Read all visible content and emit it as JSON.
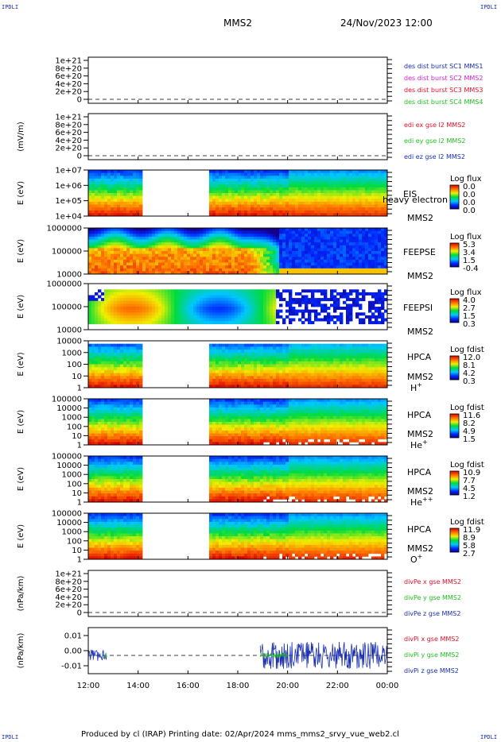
{
  "corner_label": "IPDLI",
  "header": {
    "spacecraft": "MMS2",
    "datetime": "24/Nov/2023 12:00"
  },
  "footer": "Produced by cl (IRAP)   Printing date: 02/Apr/2024   mms_mms2_srvy_vue_web2.cl",
  "chart_data": {
    "type": "heatmap",
    "x_axis": {
      "ticks": [
        "12:00",
        "14:00",
        "16:00",
        "18:00",
        "20:00",
        "22:00",
        "00:00"
      ],
      "range_hours": [
        12,
        24
      ]
    },
    "panels": [
      {
        "type": "line",
        "ylabel": "",
        "yticks": [
          "1e+21",
          "8e+20",
          "6e+20",
          "4e+20",
          "2e+20",
          "0"
        ],
        "legend": [
          {
            "text": "des dist burst SC1 MMS1",
            "color": "#1a2fb0"
          },
          {
            "text": "des dist burst SC2 MMS2",
            "color": "#d020d0"
          },
          {
            "text": "des dist burst SC3 MMS3",
            "color": "#e0102a"
          },
          {
            "text": "des dist burst SC4 MMS4",
            "color": "#20c020"
          }
        ]
      },
      {
        "type": "line",
        "ylabel": "(mV/m)",
        "yticks": [
          "1e+21",
          "8e+20",
          "6e+20",
          "4e+20",
          "2e+20",
          "0"
        ],
        "legend": [
          {
            "text": "edi ex gse l2 MMS2",
            "color": "#e0102a"
          },
          {
            "text": "edi ey gse l2 MMS2",
            "color": "#20c020"
          },
          {
            "text": "edi ez gse l2 MMS2",
            "color": "#1a2fb0"
          }
        ]
      },
      {
        "type": "spectrogram",
        "ylabel": "E (eV)",
        "yticks": [
          "1e+07",
          "1e+06",
          "1e+05",
          "1e+04"
        ],
        "instrument": "EIS",
        "sc": "MMS2",
        "overlay": "heavy electron to",
        "cbar_title": "Log flux",
        "cbar_ticks": [
          "0.0",
          "0.0",
          "0.0",
          "0.0"
        ]
      },
      {
        "type": "spectrogram",
        "ylabel": "E (eV)",
        "yticks": [
          "1000000",
          "100000",
          "10000"
        ],
        "instrument": "FEEPSE",
        "sc": "MMS2",
        "cbar_title": "Log flux",
        "cbar_ticks": [
          "5.3",
          "3.4",
          "1.5",
          "-0.4"
        ]
      },
      {
        "type": "spectrogram",
        "ylabel": "E (eV)",
        "yticks": [
          "1000000",
          "100000",
          "10000"
        ],
        "instrument": "FEEPSI",
        "sc": "MMS2",
        "cbar_title": "Log flux",
        "cbar_ticks": [
          "4.0",
          "2.7",
          "1.5",
          "0.3"
        ]
      },
      {
        "type": "spectrogram",
        "ylabel": "E (eV)",
        "yticks": [
          "10000",
          "1000",
          "100",
          "10",
          "1"
        ],
        "instrument": "HPCA",
        "sc": "MMS2",
        "species": "H",
        "charge": "+",
        "cbar_title": "Log fdist",
        "cbar_ticks": [
          "12.0",
          "8.1",
          "4.2",
          "0.3"
        ]
      },
      {
        "type": "spectrogram",
        "ylabel": "E (eV)",
        "yticks": [
          "100000",
          "10000",
          "1000",
          "100",
          "10",
          "1"
        ],
        "instrument": "HPCA",
        "sc": "MMS2",
        "species": "He",
        "charge": "+",
        "cbar_title": "Log fdist",
        "cbar_ticks": [
          "11.6",
          "8.2",
          "4.9",
          "1.5"
        ]
      },
      {
        "type": "spectrogram",
        "ylabel": "E (eV)",
        "yticks": [
          "100000",
          "10000",
          "1000",
          "100",
          "10",
          "1"
        ],
        "instrument": "HPCA",
        "sc": "MMS2",
        "species": "He",
        "charge": "++",
        "cbar_title": "Log fdist",
        "cbar_ticks": [
          "10.9",
          "7.7",
          "4.5",
          "1.2"
        ]
      },
      {
        "type": "spectrogram",
        "ylabel": "E (eV)",
        "yticks": [
          "100000",
          "10000",
          "1000",
          "100",
          "10",
          "1"
        ],
        "instrument": "HPCA",
        "sc": "MMS2",
        "species": "O",
        "charge": "+",
        "cbar_title": "Log fdist",
        "cbar_ticks": [
          "11.9",
          "8.9",
          "5.8",
          "2.7"
        ]
      },
      {
        "type": "line",
        "ylabel": "(nPa/km)",
        "yticks": [
          "1e+21",
          "8e+20",
          "6e+20",
          "4e+20",
          "2e+20",
          "0"
        ],
        "legend": [
          {
            "text": "divPe x gse MMS2",
            "color": "#e0102a"
          },
          {
            "text": "divPe y gse MMS2",
            "color": "#20c020"
          },
          {
            "text": "divPe z gse MMS2",
            "color": "#1a2fb0"
          }
        ]
      },
      {
        "type": "line",
        "ylabel": "(nPa/km)",
        "yticks": [
          "0.01",
          "0.00",
          "-0.01"
        ],
        "legend": [
          {
            "text": "divPi x gse MMS2",
            "color": "#e0102a"
          },
          {
            "text": "divPi y gse MMS2",
            "color": "#20c020"
          },
          {
            "text": "divPi z gse MMS2",
            "color": "#1a2fb0"
          }
        ]
      }
    ]
  }
}
